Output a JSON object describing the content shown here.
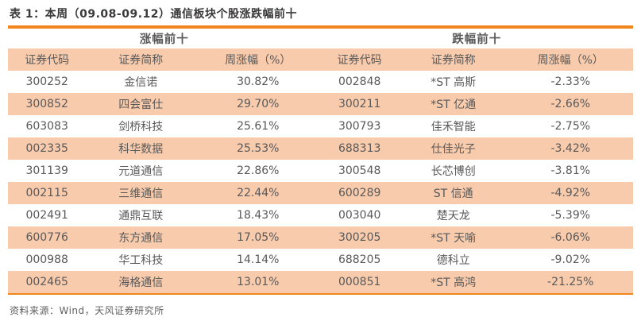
{
  "table": {
    "title": "表 1：本周（09.08-09.12）通信板块个股涨跌幅前十",
    "sections": [
      {
        "label": "涨幅前十"
      },
      {
        "label": "跌幅前十"
      }
    ],
    "columns": [
      "证券代码",
      "证券简称",
      "周涨幅（%）",
      "证券代码",
      "证券简称",
      "周涨幅（%）"
    ],
    "rows": [
      [
        "300252",
        "金信诺",
        "30.82%",
        "002848",
        "*ST 高斯",
        "-2.33%"
      ],
      [
        "300852",
        "四会富仕",
        "29.70%",
        "300211",
        "*ST 亿通",
        "-2.66%"
      ],
      [
        "603083",
        "剑桥科技",
        "25.61%",
        "300793",
        "佳禾智能",
        "-2.75%"
      ],
      [
        "002335",
        "科华数据",
        "25.53%",
        "688313",
        "仕佳光子",
        "-3.42%"
      ],
      [
        "301139",
        "元道通信",
        "22.86%",
        "300548",
        "长芯博创",
        "-3.81%"
      ],
      [
        "002115",
        "三维通信",
        "22.44%",
        "600289",
        "ST 信通",
        "-4.92%"
      ],
      [
        "002491",
        "通鼎互联",
        "18.43%",
        "003040",
        "楚天龙",
        "-5.39%"
      ],
      [
        "600776",
        "东方通信",
        "17.05%",
        "300205",
        "*ST 天喻",
        "-6.06%"
      ],
      [
        "000988",
        "华工科技",
        "14.14%",
        "688205",
        "德科立",
        "-9.02%"
      ],
      [
        "002465",
        "海格通信",
        "13.01%",
        "000851",
        "*ST 高鸿",
        "-21.25%"
      ]
    ],
    "source": "资料来源：Wind，天风证券研究所"
  },
  "colors": {
    "accent_orange": "#f0861c",
    "row_peach": "#f8cbad",
    "text_gray": "#595959",
    "title_dark": "#3a3838"
  }
}
